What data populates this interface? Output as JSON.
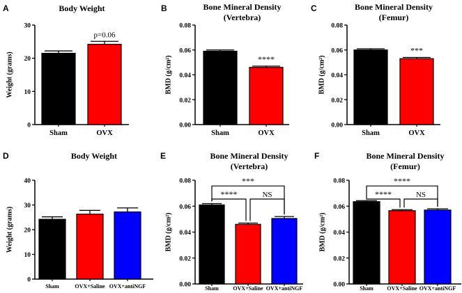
{
  "chart_data": [
    {
      "type": "bar",
      "panel": "A",
      "title": [
        "Body Weight"
      ],
      "ylabel": "Weight (grams)",
      "ylim": [
        0,
        30
      ],
      "yticks": [
        0,
        10,
        20,
        30
      ],
      "ytick_labels": [
        "0",
        "10",
        "20",
        "30"
      ],
      "categories": [
        "Sham",
        "OVX"
      ],
      "values": [
        21.5,
        24.2
      ],
      "errors": [
        0.7,
        0.9
      ],
      "colors": [
        "#000000",
        "#ff0000"
      ],
      "annotations": [
        {
          "bar": 1,
          "text": "p=0.06"
        }
      ],
      "brackets": []
    },
    {
      "type": "bar",
      "panel": "B",
      "title": [
        "Bone Mineral Density",
        "(Vertebra)"
      ],
      "ylabel": "BMD (g/cm²)",
      "ylim": [
        0,
        0.08
      ],
      "yticks": [
        0,
        0.02,
        0.04,
        0.06,
        0.08
      ],
      "ytick_labels": [
        "0.00",
        "0.02",
        "0.04",
        "0.06",
        "0.08"
      ],
      "categories": [
        "Sham",
        "OVX"
      ],
      "values": [
        0.059,
        0.046
      ],
      "errors": [
        0.001,
        0.001
      ],
      "colors": [
        "#000000",
        "#ff0000"
      ],
      "annotations": [
        {
          "bar": 1,
          "text": "****"
        }
      ],
      "brackets": []
    },
    {
      "type": "bar",
      "panel": "C",
      "title": [
        "Bone Mineral Density",
        "(Femur)"
      ],
      "ylabel": "BMD (g/cm²)",
      "ylim": [
        0,
        0.08
      ],
      "yticks": [
        0,
        0.02,
        0.04,
        0.06,
        0.08
      ],
      "ytick_labels": [
        "0.00",
        "0.02",
        "0.04",
        "0.06",
        "0.08"
      ],
      "categories": [
        "Sham",
        "OVX"
      ],
      "values": [
        0.06,
        0.053
      ],
      "errors": [
        0.001,
        0.001
      ],
      "colors": [
        "#000000",
        "#ff0000"
      ],
      "annotations": [
        {
          "bar": 1,
          "text": "***"
        }
      ],
      "brackets": []
    },
    {
      "type": "bar",
      "panel": "D",
      "title": [
        "Body Weight"
      ],
      "ylabel": "Weight (grams)",
      "ylim": [
        0,
        40
      ],
      "yticks": [
        0,
        10,
        20,
        30,
        40
      ],
      "ytick_labels": [
        "0",
        "10",
        "20",
        "30",
        "40"
      ],
      "categories": [
        "Sham",
        "OVX+Saline",
        "OVX+antiNGF"
      ],
      "values": [
        24.2,
        26.3,
        27.2
      ],
      "errors": [
        1.0,
        1.5,
        1.6
      ],
      "colors": [
        "#000000",
        "#ff0000",
        "#0000ff"
      ],
      "annotations": [],
      "brackets": []
    },
    {
      "type": "bar",
      "panel": "E",
      "title": [
        "Bone Mineral Density",
        "(Vertebra)"
      ],
      "ylabel": "BMD (g/cm²)",
      "ylim": [
        0,
        0.08
      ],
      "yticks": [
        0,
        0.02,
        0.04,
        0.06,
        0.08
      ],
      "ytick_labels": [
        "0.00",
        "0.02",
        "0.04",
        "0.06",
        "0.08"
      ],
      "categories": [
        "Sham",
        "OVX+Saline",
        "OVX+antiNGF"
      ],
      "values": [
        0.061,
        0.046,
        0.0505
      ],
      "errors": [
        0.001,
        0.001,
        0.0015
      ],
      "colors": [
        "#000000",
        "#ff0000",
        "#0000ff"
      ],
      "annotations": [],
      "brackets": [
        {
          "from": 0,
          "to": 2,
          "level": 0.0756,
          "text": "***"
        },
        {
          "from": 0,
          "to": 1,
          "level": 0.0655,
          "text": "****"
        },
        {
          "from": 1,
          "to": 2,
          "level": 0.0655,
          "text": "NS"
        }
      ]
    },
    {
      "type": "bar",
      "panel": "F",
      "title": [
        "Bone Mineral Density",
        "(Femur)"
      ],
      "ylabel": "BMD (g/cm²)",
      "ylim": [
        0,
        0.08
      ],
      "yticks": [
        0,
        0.02,
        0.04,
        0.06,
        0.08
      ],
      "ytick_labels": [
        "0.00",
        "0.02",
        "0.04",
        "0.06",
        "0.08"
      ],
      "categories": [
        "Sham",
        "OVX+Saline",
        "OVX+antiNGF"
      ],
      "values": [
        0.0635,
        0.0565,
        0.057
      ],
      "errors": [
        0.0008,
        0.0008,
        0.001
      ],
      "colors": [
        "#000000",
        "#ff0000",
        "#0000ff"
      ],
      "annotations": [],
      "brackets": [
        {
          "from": 0,
          "to": 2,
          "level": 0.0756,
          "text": "****"
        },
        {
          "from": 0,
          "to": 1,
          "level": 0.0655,
          "text": "****"
        },
        {
          "from": 1,
          "to": 2,
          "level": 0.0655,
          "text": "NS"
        }
      ]
    }
  ]
}
